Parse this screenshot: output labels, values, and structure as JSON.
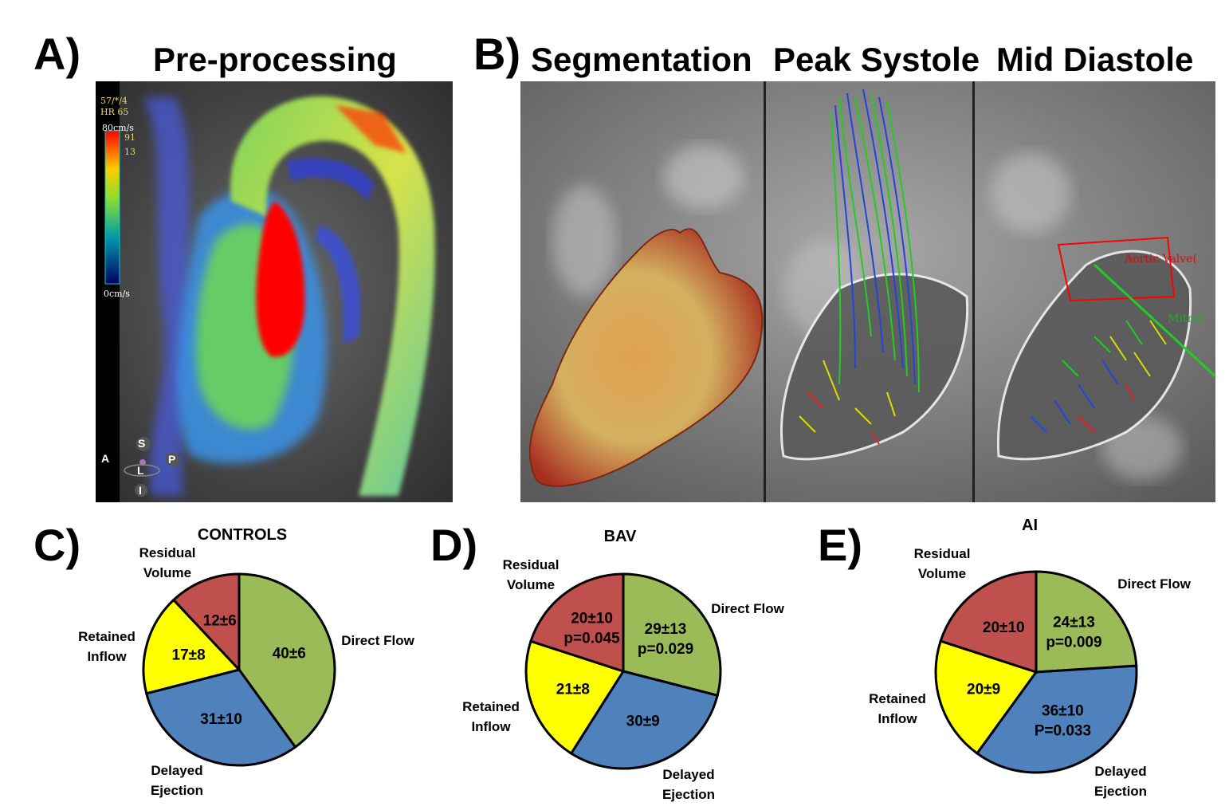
{
  "panel_a": {
    "letter": "A)",
    "heading": "Pre-processing",
    "overlay": {
      "line1": "57/*/4",
      "line2": "HR 65",
      "scale_max": "80cm/s",
      "scale_min": "0cm/s",
      "val1": "91",
      "val2": "13"
    },
    "orientation": {
      "s": "S",
      "a": "A",
      "p": "P",
      "l": "L",
      "i": "I"
    }
  },
  "panel_b": {
    "letter": "B)",
    "headings": [
      "Segmentation",
      "Peak Systole",
      "Mid Diastole"
    ],
    "aortic_valve_label": "Aortic Valve(",
    "mitral_label": "Mitral"
  },
  "colors": {
    "residual": "#c0504d",
    "retained": "#ffff00",
    "direct": "#9bbb59",
    "delayed": "#4f81bd"
  },
  "chart_data": [
    {
      "type": "pie",
      "panel": "C)",
      "title": "CONTROLS",
      "slices": [
        {
          "name": "Direct Flow",
          "value": 40,
          "label": "40±6"
        },
        {
          "name": "Delayed Ejection",
          "value": 31,
          "label": "31±10"
        },
        {
          "name": "Retained Inflow",
          "value": 17,
          "label": "17±8"
        },
        {
          "name": "Residual Volume",
          "value": 12,
          "label": "12±6"
        }
      ]
    },
    {
      "type": "pie",
      "panel": "D)",
      "title": "BAV",
      "slices": [
        {
          "name": "Direct Flow",
          "value": 29,
          "label": "29±13",
          "label2": "p=0.029"
        },
        {
          "name": "Delayed Ejection",
          "value": 30,
          "label": "30±9"
        },
        {
          "name": "Retained Inflow",
          "value": 21,
          "label": "21±8"
        },
        {
          "name": "Residual Volume",
          "value": 20,
          "label": "20±10",
          "label2": "p=0.045"
        }
      ]
    },
    {
      "type": "pie",
      "panel": "E)",
      "title": "AI",
      "slices": [
        {
          "name": "Direct Flow",
          "value": 24,
          "label": "24±13",
          "label2": "p=0.009"
        },
        {
          "name": "Delayed Ejection",
          "value": 36,
          "label": "36±10",
          "label2": "P=0.033"
        },
        {
          "name": "Retained Inflow",
          "value": 20,
          "label": "20±9"
        },
        {
          "name": "Residual Volume",
          "value": 20,
          "label": "20±10"
        }
      ]
    }
  ],
  "pie_labels": {
    "c": {
      "residual": [
        "Residual",
        "Volume"
      ],
      "retained": [
        "Retained",
        "Inflow"
      ],
      "direct": [
        "Direct Flow"
      ],
      "delayed": [
        "Delayed",
        "Ejection"
      ]
    },
    "d": {
      "residual": [
        "Residual",
        "Volume"
      ],
      "retained": [
        "Retained",
        "Inflow"
      ],
      "direct": [
        "Direct Flow"
      ],
      "delayed": [
        "Delayed",
        "Ejection"
      ]
    },
    "e": {
      "residual": [
        "Residual",
        "Volume"
      ],
      "retained": [
        "Retained",
        "Inflow"
      ],
      "direct": [
        "Direct Flow"
      ],
      "delayed": [
        "Delayed",
        "Ejection"
      ]
    }
  }
}
